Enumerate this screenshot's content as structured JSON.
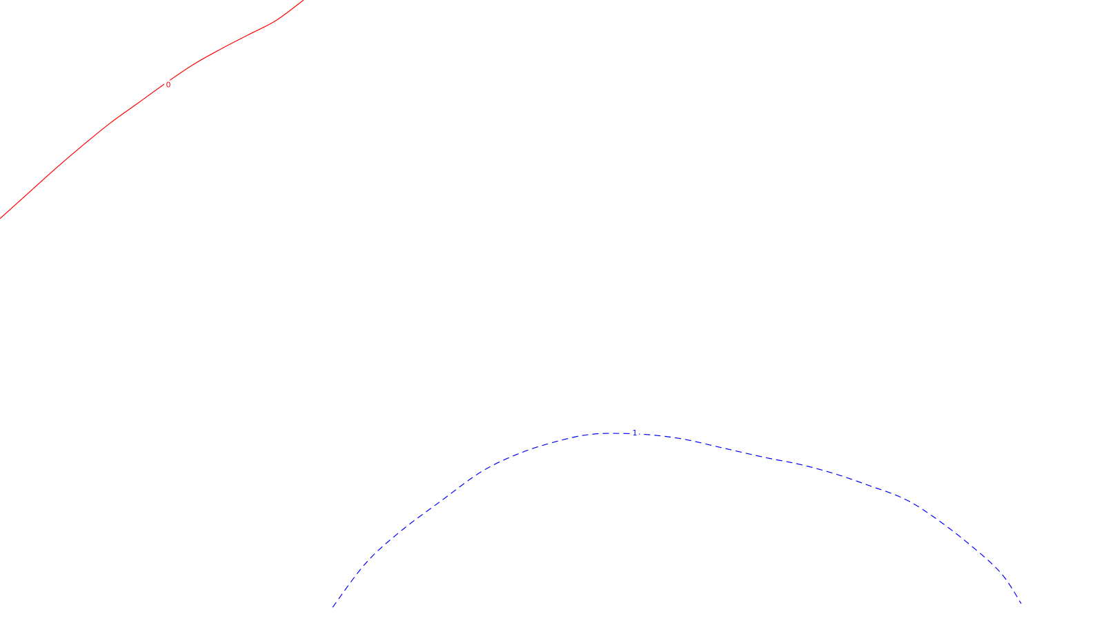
{
  "chart_data": {
    "type": "line",
    "grid": false,
    "legend": "none",
    "series": [
      {
        "contour_label": "0",
        "color": "#ff0000",
        "dash": "solid",
        "x": [
          0,
          40,
          80,
          120,
          160,
          200,
          240,
          280,
          320,
          360,
          400,
          440
        ],
        "y": [
          0.352,
          0.312,
          0.272,
          0.234,
          0.198,
          0.166,
          0.134,
          0.104,
          0.079,
          0.056,
          0.033,
          0.0
        ]
      },
      {
        "contour_label": "1",
        "color": "#0000ff",
        "dash": "dashed",
        "x": [
          482,
          530,
          580,
          640,
          700,
          760,
          820,
          860,
          900,
          940,
          990,
          1050,
          1110,
          1160,
          1210,
          1260,
          1310,
          1350,
          1400,
          1450,
          1480
        ],
        "y": [
          0.978,
          0.907,
          0.856,
          0.806,
          0.758,
          0.727,
          0.707,
          0.699,
          0.698,
          0.7,
          0.707,
          0.722,
          0.737,
          0.748,
          0.763,
          0.782,
          0.803,
          0.83,
          0.872,
          0.922,
          0.972
        ]
      }
    ],
    "labels": [
      {
        "text": "0",
        "x": 244,
        "y": 0.137,
        "color": "#ff0000"
      },
      {
        "text": "1",
        "x": 920,
        "y": 0.698,
        "color": "#0000ff"
      }
    ]
  }
}
